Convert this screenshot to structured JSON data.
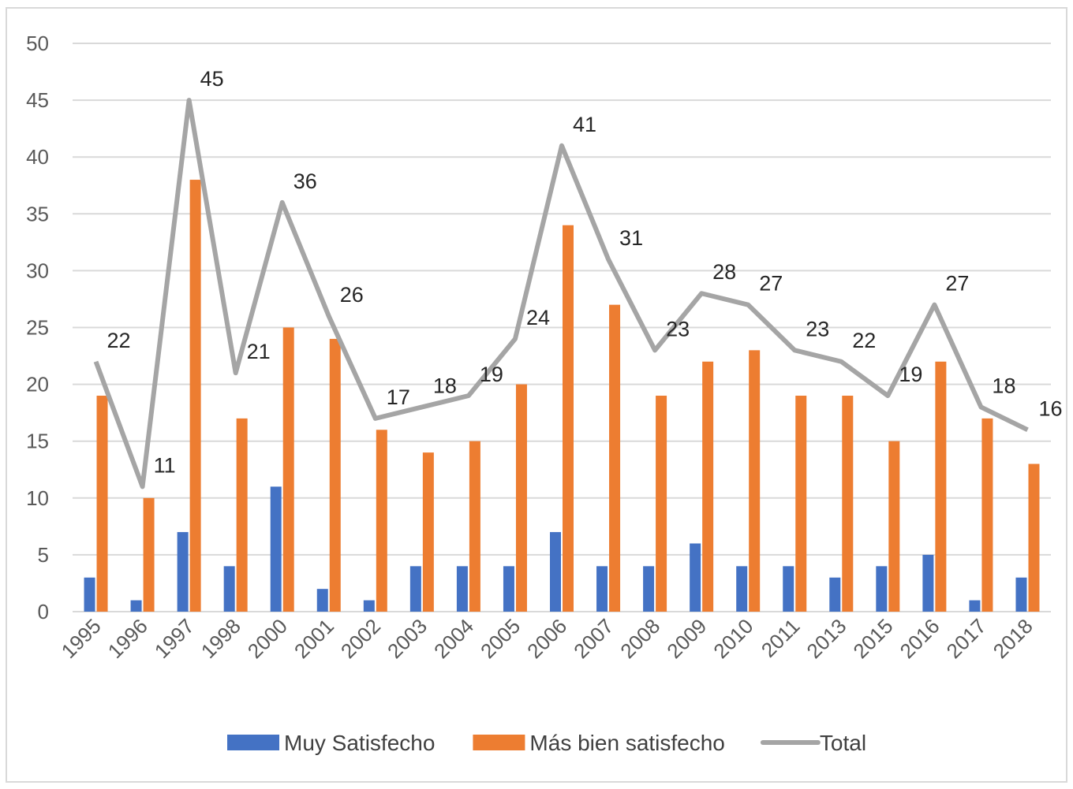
{
  "chart_data": {
    "type": "bar-line",
    "categories": [
      "1995",
      "1996",
      "1997",
      "1998",
      "2000",
      "2001",
      "2002",
      "2003",
      "2004",
      "2005",
      "2006",
      "2007",
      "2008",
      "2009",
      "2010",
      "2011",
      "2013",
      "2015",
      "2016",
      "2017",
      "2018"
    ],
    "series": [
      {
        "name": "Muy Satisfecho",
        "color": "#4472c4",
        "kind": "bar",
        "values": [
          3,
          1,
          7,
          4,
          11,
          2,
          1,
          4,
          4,
          4,
          7,
          4,
          4,
          6,
          4,
          4,
          3,
          4,
          5,
          1,
          3
        ]
      },
      {
        "name": "Más bien satisfecho",
        "color": "#ed7d31",
        "kind": "bar",
        "values": [
          19,
          10,
          38,
          17,
          25,
          24,
          16,
          14,
          15,
          20,
          34,
          27,
          19,
          22,
          23,
          19,
          19,
          15,
          22,
          17,
          13
        ]
      },
      {
        "name": "Total",
        "color": "#a5a5a5",
        "kind": "line",
        "values": [
          22,
          11,
          45,
          21,
          36,
          26,
          17,
          18,
          19,
          24,
          41,
          31,
          23,
          28,
          27,
          23,
          22,
          19,
          27,
          18,
          16
        ]
      }
    ],
    "ylim": [
      0,
      50
    ],
    "yticks": [
      0,
      5,
      10,
      15,
      20,
      25,
      30,
      35,
      40,
      45,
      50
    ],
    "grid": true,
    "legend": "bottom"
  }
}
